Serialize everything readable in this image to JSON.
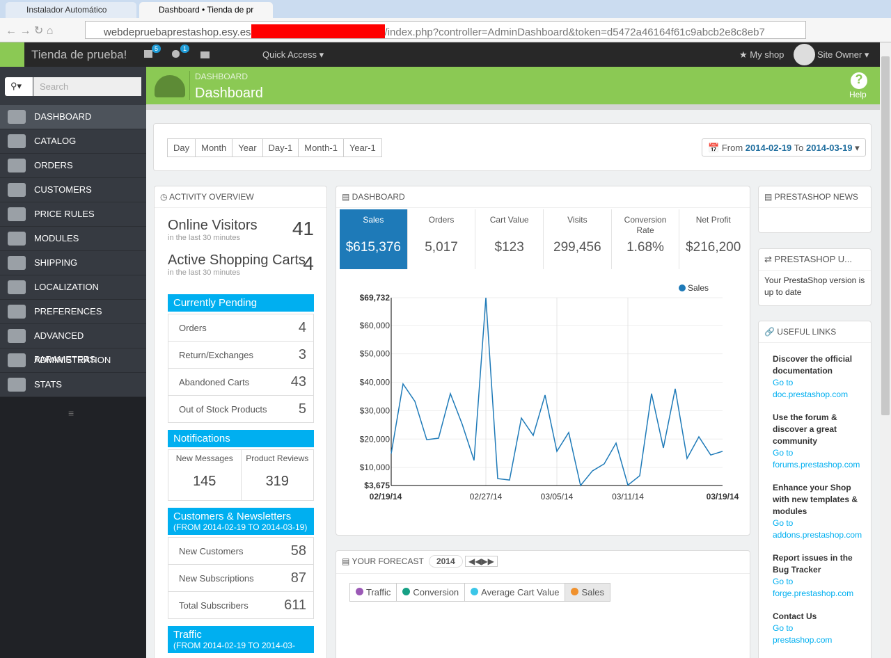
{
  "browser": {
    "tabs": [
      "Instalador Automático",
      "Dashboard • Tienda de pr"
    ],
    "url_host": "webdepruebaprestashop.esy.es",
    "url_path": "/index.php?controller=AdminDashboard&token=d5472a46164f61c9abcb2e8c8eb7"
  },
  "topbar": {
    "shop_name": "Tienda de prueba!",
    "cart_badge": 5,
    "customer_badge": 1,
    "quick_access": "Quick Access",
    "my_shop": "My shop",
    "user": "Site Owner"
  },
  "sidebar": {
    "search": "Search",
    "menu": [
      "DASHBOARD",
      "CATALOG",
      "ORDERS",
      "CUSTOMERS",
      "PRICE RULES",
      "MODULES",
      "SHIPPING",
      "LOCALIZATION",
      "PREFERENCES",
      "ADVANCED PARAMETERS",
      "ADMINISTRATION",
      "STATS"
    ]
  },
  "header": {
    "breadcrumb": "DASHBOARD",
    "title": "Dashboard",
    "help": "Help"
  },
  "periods": [
    "Day",
    "Month",
    "Year",
    "Day-1",
    "Month-1",
    "Year-1"
  ],
  "date_range": {
    "from_label": "From",
    "from": "2014-02-19",
    "to_label": "To",
    "to": "2014-03-19"
  },
  "activity": {
    "title": "ACTIVITY OVERVIEW",
    "stats": [
      {
        "label": "Online Visitors",
        "sublabel": "in the last 30 minutes",
        "value": 41
      },
      {
        "label": "Active Shopping Carts",
        "sublabel": "in the last 30 minutes",
        "value": 4
      }
    ],
    "pending": {
      "title": "Currently Pending",
      "rows": [
        {
          "label": "Orders",
          "value": 4
        },
        {
          "label": "Return/Exchanges",
          "value": 3
        },
        {
          "label": "Abandoned Carts",
          "value": 43
        },
        {
          "label": "Out of Stock Products",
          "value": 5
        }
      ]
    },
    "notifications": {
      "title": "Notifications",
      "items": [
        {
          "label": "New Messages",
          "value": 145
        },
        {
          "label": "Product Reviews",
          "value": 319
        }
      ]
    },
    "customers": {
      "title": "Customers & Newsletters",
      "subtitle": "(FROM 2014-02-19 TO 2014-03-19)",
      "rows": [
        {
          "label": "New Customers",
          "value": 58
        },
        {
          "label": "New Subscriptions",
          "value": 87
        },
        {
          "label": "Total Subscribers",
          "value": 611
        }
      ]
    },
    "traffic": {
      "title": "Traffic",
      "subtitle": "(FROM 2014-02-19 TO 2014-03-"
    }
  },
  "dashboard": {
    "title": "DASHBOARD",
    "kpis": [
      {
        "label": "Sales",
        "value": "$615,376"
      },
      {
        "label": "Orders",
        "value": "5,017"
      },
      {
        "label": "Cart Value",
        "value": "$123"
      },
      {
        "label": "Visits",
        "value": "299,456"
      },
      {
        "label": "Conversion Rate",
        "value": "1.68%"
      },
      {
        "label": "Net Profit",
        "value": "$216,200"
      }
    ]
  },
  "chart_data": {
    "type": "line",
    "categories": [
      "02/19/14",
      null,
      null,
      null,
      null,
      null,
      null,
      null,
      "02/27/14",
      null,
      null,
      null,
      null,
      null,
      "03/05/14",
      null,
      null,
      null,
      null,
      null,
      "03/11/14",
      null,
      null,
      null,
      null,
      null,
      null,
      null,
      "03/19/14"
    ],
    "series": [
      {
        "name": "Sales",
        "color": "#1e7ab8",
        "values": [
          14900,
          39400,
          33300,
          19800,
          20300,
          36000,
          25200,
          12500,
          69732,
          6100,
          5600,
          27400,
          21300,
          35500,
          15700,
          22300,
          3675,
          8800,
          11300,
          18600,
          3800,
          7100,
          36000,
          16900,
          37700,
          13200,
          20800,
          14400,
          15700
        ]
      }
    ],
    "ylim": [
      3675,
      69732
    ],
    "yticks": [
      {
        "value": 3675,
        "label": "$3,675"
      },
      {
        "value": 10000,
        "label": "$10,000"
      },
      {
        "value": 20000,
        "label": "$20,000"
      },
      {
        "value": 30000,
        "label": "$30,000"
      },
      {
        "value": 40000,
        "label": "$40,000"
      },
      {
        "value": 50000,
        "label": "$50,000"
      },
      {
        "value": 60000,
        "label": "$60,000"
      },
      {
        "value": 69732,
        "label": "$69,732"
      }
    ],
    "grid": true
  },
  "forecast": {
    "title": "YOUR FORECAST",
    "year": "2014",
    "tabs": [
      "Traffic",
      "Conversion",
      "Average Cart Value",
      "Sales"
    ],
    "colors": [
      "#9b59b6",
      "#16a085",
      "#3bc6e8",
      "#f0912d"
    ]
  },
  "news": {
    "title": "PRESTASHOP NEWS"
  },
  "update": {
    "title": "PRESTASHOP U...",
    "text": "Your PrestaShop version is up to date"
  },
  "links": {
    "title": "USEFUL LINKS",
    "items": [
      {
        "title": "Discover the official documentation",
        "go": "Go to",
        "url": "doc.prestashop.com"
      },
      {
        "title": "Use the forum & discover a great community",
        "go": "Go to",
        "url": "forums.prestashop.com"
      },
      {
        "title": "Enhance your Shop with new templates & modules",
        "go": "Go to",
        "url": "addons.prestashop.com"
      },
      {
        "title": "Report issues in the Bug Tracker",
        "go": "Go to",
        "url": "forge.prestashop.com"
      },
      {
        "title": "Contact Us",
        "go": "Go to",
        "url": "prestashop.com"
      }
    ]
  }
}
